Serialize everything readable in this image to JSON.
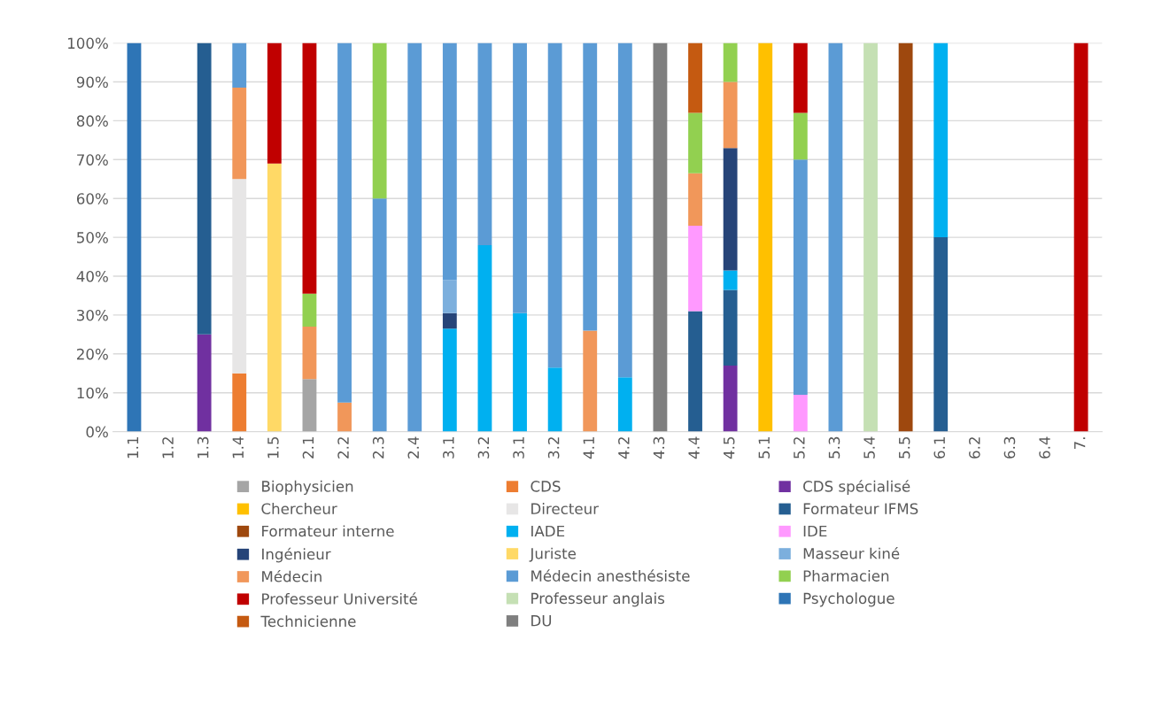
{
  "chart_data": {
    "type": "bar",
    "stacked": true,
    "categories": [
      "1.1",
      "1.2",
      "1.3",
      "1.4",
      "1.5",
      "2.1",
      "2.2",
      "2.3",
      "2.4",
      "3.1",
      "3.2",
      "3.1",
      "3.2",
      "4.1",
      "4.2",
      "4.3",
      "4.4",
      "4.5",
      "5.1",
      "5.2",
      "5.3",
      "5.4",
      "5.5",
      "6.1",
      "6.2",
      "6.3",
      "6.4",
      "7."
    ],
    "ylim": [
      0,
      100
    ],
    "yticks": [
      {
        "value": 0,
        "label": "0%"
      },
      {
        "value": 10,
        "label": "10%"
      },
      {
        "value": 20,
        "label": "20%"
      },
      {
        "value": 30,
        "label": "30%"
      },
      {
        "value": 40,
        "label": "40%"
      },
      {
        "value": 50,
        "label": "50%"
      },
      {
        "value": 60,
        "label": "60%"
      },
      {
        "value": 70,
        "label": "70%"
      },
      {
        "value": 80,
        "label": "80%"
      },
      {
        "value": 90,
        "label": "90%"
      },
      {
        "value": 100,
        "label": "100%"
      }
    ],
    "grid": "y",
    "legend": "bottom",
    "series": [
      {
        "name": "Biophysicien",
        "color": "#a5a5a5",
        "values": [
          null,
          null,
          null,
          null,
          null,
          13.5,
          null,
          null,
          null,
          null,
          null,
          null,
          null,
          null,
          null,
          null,
          null,
          null,
          null,
          null,
          null,
          null,
          null,
          null,
          null,
          null,
          null,
          null
        ]
      },
      {
        "name": "CDS",
        "color": "#ed7d31",
        "values": [
          null,
          null,
          null,
          15,
          null,
          null,
          null,
          null,
          null,
          null,
          null,
          null,
          null,
          null,
          null,
          null,
          null,
          null,
          null,
          null,
          null,
          null,
          null,
          null,
          null,
          null,
          null,
          null
        ]
      },
      {
        "name": "CDS spécialisé",
        "color": "#7030a0",
        "values": [
          null,
          null,
          25,
          null,
          null,
          null,
          null,
          null,
          null,
          null,
          null,
          null,
          null,
          null,
          null,
          null,
          null,
          17,
          null,
          null,
          null,
          null,
          null,
          null,
          null,
          null,
          null,
          null
        ]
      },
      {
        "name": "Chercheur",
        "color": "#ffc000",
        "values": [
          null,
          null,
          null,
          null,
          null,
          null,
          null,
          null,
          null,
          null,
          null,
          null,
          null,
          null,
          null,
          null,
          null,
          null,
          100,
          null,
          null,
          null,
          null,
          null,
          null,
          null,
          null,
          null
        ]
      },
      {
        "name": "Directeur",
        "color": "#e7e6e6",
        "values": [
          null,
          null,
          null,
          50,
          null,
          null,
          null,
          null,
          null,
          null,
          null,
          null,
          null,
          null,
          null,
          null,
          null,
          null,
          null,
          null,
          null,
          null,
          null,
          null,
          null,
          null,
          null,
          null
        ]
      },
      {
        "name": "Formateur IFMS",
        "color": "#255e91",
        "values": [
          null,
          null,
          75,
          null,
          null,
          null,
          null,
          null,
          null,
          null,
          null,
          null,
          null,
          null,
          null,
          null,
          31,
          19.5,
          null,
          null,
          null,
          null,
          null,
          50,
          null,
          null,
          null,
          null
        ]
      },
      {
        "name": "Formateur interne",
        "color": "#9e480e",
        "values": [
          null,
          null,
          null,
          null,
          null,
          null,
          null,
          null,
          null,
          null,
          null,
          null,
          null,
          null,
          null,
          null,
          null,
          null,
          null,
          null,
          null,
          null,
          100,
          null,
          null,
          null,
          null,
          null
        ]
      },
      {
        "name": "IADE",
        "color": "#00b0f0",
        "values": [
          null,
          null,
          null,
          null,
          null,
          null,
          null,
          null,
          null,
          26.5,
          48,
          30.5,
          16.5,
          null,
          14,
          null,
          null,
          5,
          null,
          null,
          null,
          null,
          null,
          50,
          null,
          null,
          null,
          null
        ]
      },
      {
        "name": "IDE",
        "color": "#ff99ff",
        "values": [
          null,
          null,
          null,
          null,
          null,
          null,
          null,
          null,
          null,
          null,
          null,
          null,
          null,
          null,
          null,
          null,
          22,
          null,
          null,
          9.5,
          null,
          null,
          null,
          null,
          null,
          null,
          null,
          null
        ]
      },
      {
        "name": "Ingénieur",
        "color": "#264478",
        "values": [
          null,
          null,
          null,
          null,
          null,
          null,
          null,
          null,
          null,
          4,
          null,
          null,
          null,
          null,
          null,
          null,
          null,
          31.5,
          null,
          null,
          null,
          null,
          null,
          null,
          null,
          null,
          null,
          null
        ]
      },
      {
        "name": "Juriste",
        "color": "#ffd966",
        "values": [
          null,
          null,
          null,
          null,
          69,
          null,
          null,
          null,
          null,
          null,
          null,
          null,
          null,
          null,
          null,
          null,
          null,
          null,
          null,
          null,
          null,
          null,
          null,
          null,
          null,
          null,
          null,
          null
        ]
      },
      {
        "name": "Masseur kiné",
        "color": "#7cafdd",
        "values": [
          null,
          null,
          null,
          null,
          null,
          null,
          null,
          null,
          null,
          8.5,
          null,
          null,
          null,
          null,
          null,
          null,
          null,
          null,
          null,
          null,
          null,
          null,
          null,
          null,
          null,
          null,
          null,
          null
        ]
      },
      {
        "name": "Médecin",
        "color": "#f1975a",
        "values": [
          null,
          null,
          null,
          23.5,
          null,
          13.5,
          7.5,
          null,
          null,
          null,
          null,
          null,
          null,
          26,
          null,
          null,
          13.5,
          17,
          null,
          null,
          null,
          null,
          null,
          null,
          null,
          null,
          null,
          null
        ]
      },
      {
        "name": "Médecin anesthésiste",
        "color": "#5b9bd5",
        "values": [
          null,
          null,
          null,
          11.5,
          null,
          null,
          92.5,
          60,
          100,
          61,
          52,
          69.5,
          83.5,
          74,
          86,
          null,
          null,
          null,
          null,
          60.5,
          100,
          null,
          null,
          null,
          null,
          null,
          null,
          null
        ]
      },
      {
        "name": "Pharmacien",
        "color": "#92d050",
        "values": [
          null,
          null,
          null,
          null,
          null,
          8.5,
          null,
          40,
          null,
          null,
          null,
          null,
          null,
          null,
          null,
          null,
          15.5,
          10,
          null,
          12,
          null,
          null,
          null,
          null,
          null,
          null,
          null,
          null
        ]
      },
      {
        "name": "Professeur Université",
        "color": "#c00000",
        "values": [
          null,
          null,
          null,
          null,
          31,
          64.5,
          null,
          null,
          null,
          null,
          null,
          null,
          null,
          null,
          null,
          null,
          null,
          null,
          null,
          18,
          null,
          null,
          null,
          null,
          null,
          null,
          null,
          100
        ]
      },
      {
        "name": "Professeur anglais",
        "color": "#c5e0b4",
        "values": [
          null,
          null,
          null,
          null,
          null,
          null,
          null,
          null,
          null,
          null,
          null,
          null,
          null,
          null,
          null,
          null,
          null,
          null,
          null,
          null,
          null,
          100,
          null,
          null,
          null,
          null,
          null,
          null
        ]
      },
      {
        "name": "Psychologue",
        "color": "#2e75b6",
        "values": [
          100,
          null,
          null,
          null,
          null,
          null,
          null,
          null,
          null,
          null,
          null,
          null,
          null,
          null,
          null,
          null,
          null,
          null,
          null,
          null,
          null,
          null,
          null,
          null,
          null,
          null,
          null,
          null
        ]
      },
      {
        "name": "Technicienne",
        "color": "#c55a11",
        "values": [
          null,
          null,
          null,
          null,
          null,
          null,
          null,
          null,
          null,
          null,
          null,
          null,
          null,
          null,
          null,
          null,
          18,
          null,
          null,
          null,
          null,
          null,
          null,
          null,
          null,
          null,
          null,
          null
        ]
      },
      {
        "name": "DU",
        "color": "#7f7f7f",
        "values": [
          null,
          null,
          null,
          null,
          null,
          null,
          null,
          null,
          null,
          null,
          null,
          null,
          null,
          null,
          null,
          100,
          null,
          null,
          null,
          null,
          null,
          null,
          null,
          null,
          null,
          null,
          null,
          null
        ]
      }
    ]
  }
}
